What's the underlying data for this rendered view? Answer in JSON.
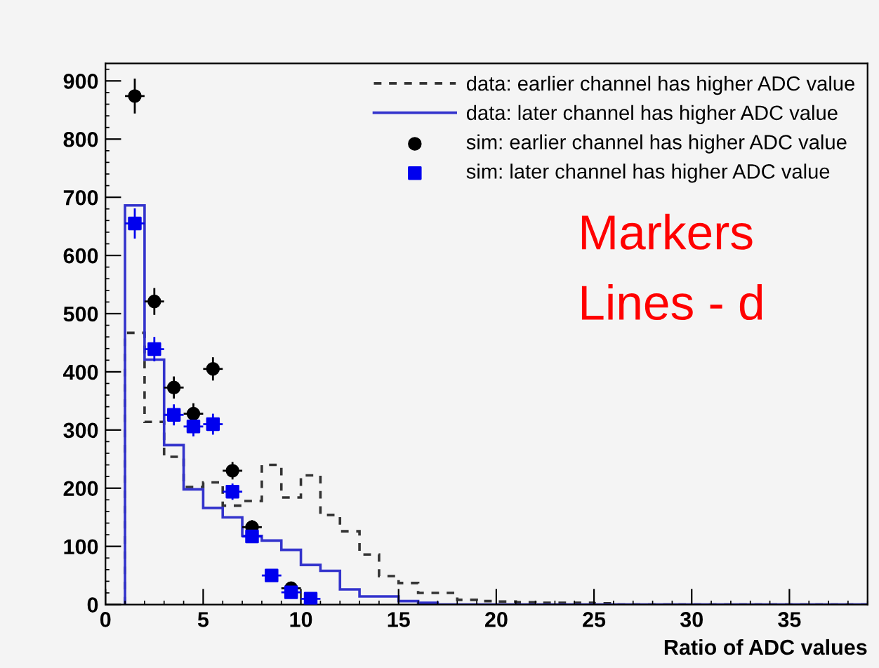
{
  "chart_data": {
    "type": "histogram",
    "xlabel": "Ratio of ADC values",
    "bins": [
      1,
      2,
      3,
      4,
      5,
      6,
      7,
      8,
      9,
      10,
      11,
      12,
      13,
      14,
      15,
      16,
      17,
      18,
      19,
      20,
      21,
      22,
      23,
      24,
      25,
      26,
      27,
      28,
      29,
      30,
      31,
      32,
      33,
      34,
      35,
      36,
      37,
      38,
      39
    ],
    "series": [
      {
        "name": "data: earlier channel has higher ADC value",
        "color": "#333333",
        "line_style": "dashed",
        "values": [
          467,
          314,
          254,
          202,
          210,
          170,
          178,
          240,
          184,
          222,
          154,
          126,
          86,
          49,
          37,
          20,
          20,
          8,
          6,
          5,
          4,
          3,
          3,
          3,
          2,
          0,
          0,
          0,
          0,
          0,
          0,
          0,
          0,
          0,
          0,
          0,
          0,
          0
        ]
      },
      {
        "name": "data: later channel has higher ADC value",
        "color": "#3333cc",
        "line_style": "solid",
        "values": [
          686,
          421,
          274,
          198,
          166,
          150,
          118,
          110,
          94,
          68,
          58,
          26,
          14,
          14,
          6,
          3,
          0,
          0,
          0,
          0,
          0,
          0,
          0,
          0,
          0,
          0,
          0,
          0,
          0,
          0,
          0,
          0,
          0,
          0,
          0,
          0,
          0,
          0
        ]
      },
      {
        "name": "sim: earlier channel has higher ADC value",
        "type": "scatter",
        "color": "#000000",
        "marker": "circle",
        "x": [
          1.5,
          2.5,
          3.5,
          4.5,
          5.5,
          6.5,
          7.5,
          9.5
        ],
        "values": [
          874,
          521,
          373,
          328,
          405,
          230,
          133,
          28
        ],
        "errors": [
          30,
          23,
          19,
          18,
          20,
          15,
          12,
          6
        ],
        "xerrors": [
          0.5,
          0.5,
          0.5,
          0.5,
          0.5,
          0.5,
          0.5,
          0.5
        ]
      },
      {
        "name": "sim: later channel has higher ADC value",
        "type": "scatter",
        "color": "#0000ee",
        "marker": "square",
        "x": [
          1.5,
          2.5,
          3.5,
          4.5,
          5.5,
          6.5,
          7.5,
          8.5,
          9.5,
          10.5
        ],
        "values": [
          655,
          439,
          326,
          306,
          310,
          194,
          117,
          50,
          21,
          10
        ],
        "errors": [
          26,
          21,
          18,
          17,
          18,
          14,
          11,
          7,
          5,
          3
        ],
        "xerrors": [
          0.5,
          0.5,
          0.5,
          0.5,
          0.5,
          0.5,
          0.5,
          0.5,
          0.5,
          0.5
        ]
      }
    ],
    "xlim": [
      0,
      39
    ],
    "ylim": [
      0,
      930
    ],
    "xticks": [
      0,
      5,
      10,
      15,
      20,
      25,
      30,
      35
    ],
    "yticks": [
      0,
      100,
      200,
      300,
      400,
      500,
      600,
      700,
      800,
      900
    ],
    "grid": false,
    "legend": "top right",
    "annotations": [
      "Markers",
      "Lines - d"
    ]
  }
}
